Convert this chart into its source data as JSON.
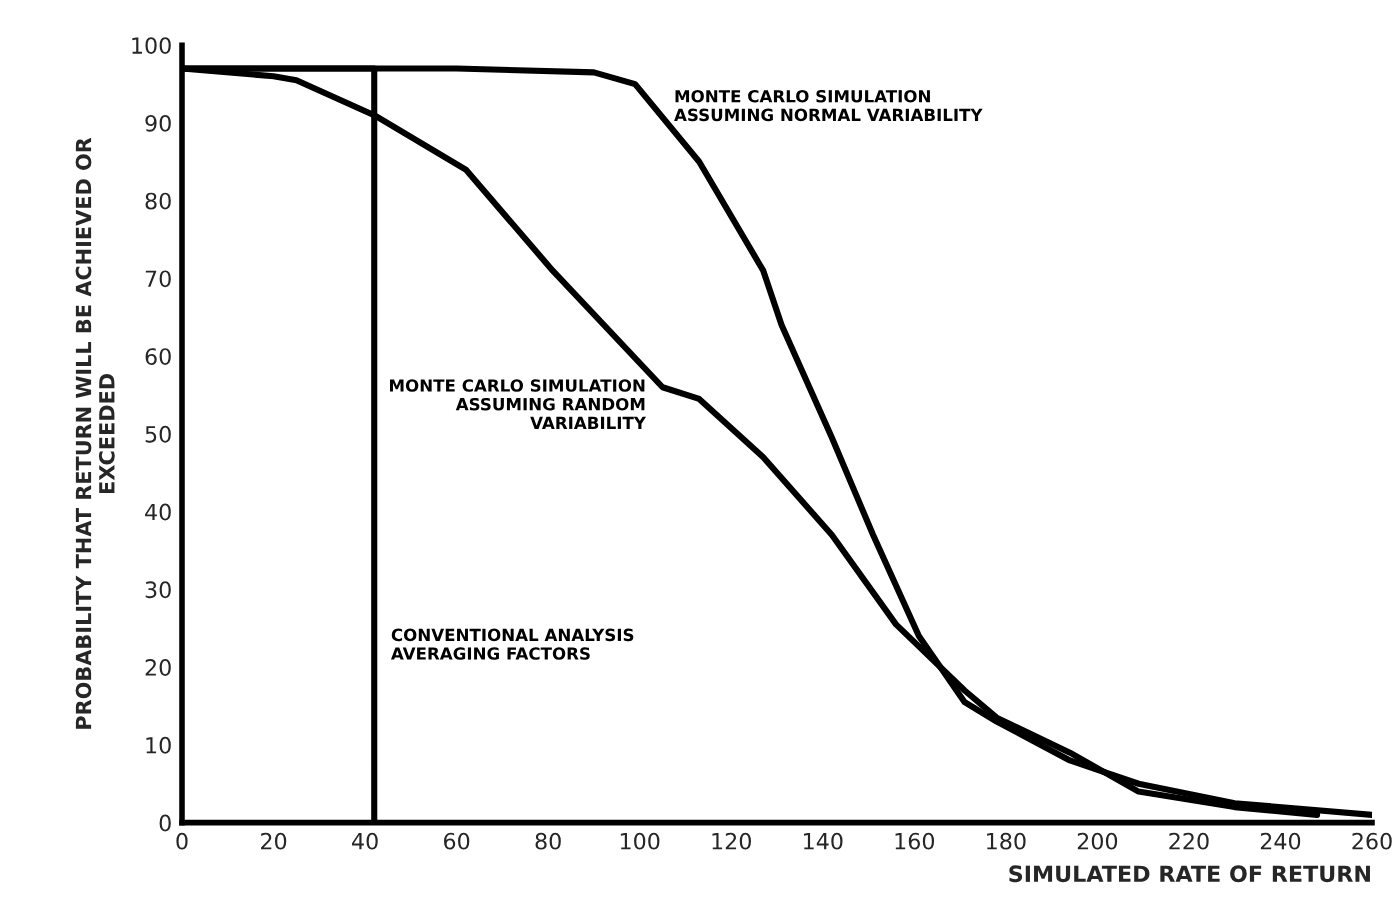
{
  "chart_data": {
    "type": "line",
    "xlabel": "SIMULATED RATE OF RETURN",
    "ylabel": "PROBABILITY THAT RETURN WILL BE ACHIEVED OR\nEXCEEDED",
    "xlim": [
      0,
      260
    ],
    "ylim": [
      0,
      100
    ],
    "xticks": [
      0,
      20,
      40,
      60,
      80,
      100,
      120,
      140,
      160,
      180,
      200,
      220,
      240,
      260
    ],
    "yticks": [
      0,
      10,
      20,
      30,
      40,
      50,
      60,
      70,
      80,
      90,
      100
    ],
    "grid": false,
    "legend": false,
    "marker": "none",
    "line_style": "solid",
    "series": [
      {
        "name": "MONTE CARLO SIMULATION\nASSUMING NORMAL VARIABILITY",
        "color": "#000000",
        "x": [
          0,
          60,
          90,
          99,
          113,
          127,
          131,
          142,
          151,
          161,
          171,
          178,
          194,
          209,
          230,
          260
        ],
        "values": [
          97,
          97,
          96.5,
          95,
          85,
          71,
          64,
          49.5,
          37,
          24,
          15.5,
          13,
          8,
          5,
          2.5,
          1
        ]
      },
      {
        "name": "MONTE CARLO SIMULATION\nASSUMING RANDOM\nVARIABILITY",
        "color": "#000000",
        "x": [
          0,
          20,
          25,
          42,
          62,
          81,
          105,
          113,
          127,
          142,
          156,
          171,
          178,
          194,
          209,
          230,
          248
        ],
        "values": [
          97,
          96,
          95.5,
          91,
          84,
          71,
          56,
          54.5,
          47,
          37,
          25.5,
          17,
          13.5,
          9,
          4,
          2,
          1
        ]
      },
      {
        "name": "CONVENTIONAL ANALYSIS\nAVERAGING FACTORS",
        "color": "#000000",
        "x": [
          0,
          42,
          42
        ],
        "values": [
          97,
          97,
          0
        ]
      }
    ]
  }
}
